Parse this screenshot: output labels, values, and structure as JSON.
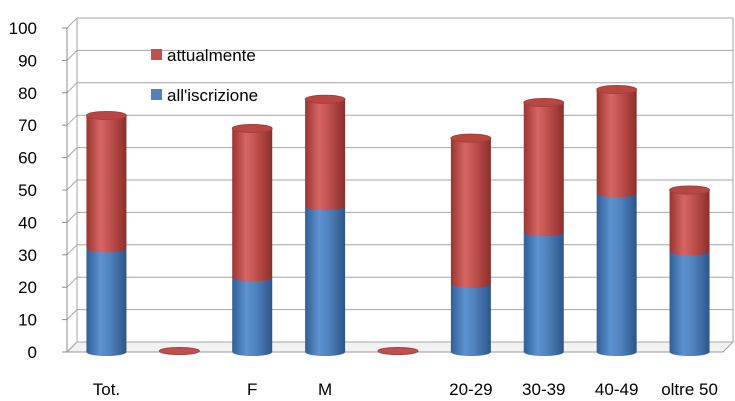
{
  "chart_data": {
    "type": "bar",
    "stacked": true,
    "style": "3d-cylinder",
    "categories": [
      "Tot.",
      "",
      "F",
      "M",
      "",
      "20-29",
      "30-39",
      "40-49",
      "oltre 50"
    ],
    "series": [
      {
        "name": "all'iscrizione",
        "color": "#4f81bd",
        "values": [
          32,
          0,
          23,
          45,
          0,
          21,
          37,
          49,
          31
        ]
      },
      {
        "name": "attualmente",
        "color": "#c0504d",
        "values": [
          41,
          0,
          46,
          33,
          0,
          45,
          40,
          32,
          19
        ]
      }
    ],
    "ylim": [
      0,
      100
    ],
    "yticks": [
      0,
      10,
      20,
      30,
      40,
      50,
      60,
      70,
      80,
      90,
      100
    ],
    "grid": true,
    "legend_position": "top-left inside plot",
    "legend_order": [
      "attualmente",
      "all'iscrizione"
    ]
  }
}
